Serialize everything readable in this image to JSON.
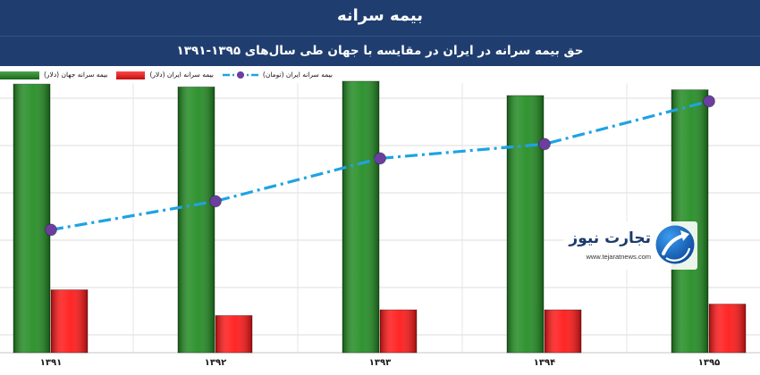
{
  "chart_data": {
    "type": "bar",
    "title": "بیمه سرانه",
    "subtitle": "حق بیمه سرانه در ایران در مقایسه با جهان طی سال‌های ۱۳۹۵-۱۳۹۱",
    "categories": [
      "۱۳۹۱",
      "۱۳۹۲",
      "۱۳۹۳",
      "۱۳۹۴",
      "۱۳۹۵"
    ],
    "series": [
      {
        "name": "بیمه سرانه جهان (دلار)",
        "type": "bar",
        "color": "#1f8a1f",
        "values": [
          94,
          93,
          95,
          90,
          92
        ]
      },
      {
        "name": "بیمه سرانه ایران (دلار)",
        "type": "bar",
        "color": "#ff1414",
        "values": [
          22,
          13,
          15,
          15,
          17
        ]
      },
      {
        "name": "بیمه سرانه ایران (تومان)",
        "type": "line",
        "color": "#1ea3e3",
        "marker_color": "#6a3f9e",
        "values": [
          43,
          53,
          68,
          73,
          88
        ]
      }
    ],
    "ylim": [
      0,
      100
    ],
    "grid": true,
    "legend": "top-left"
  },
  "watermark": {
    "name": "تجارت نیوز",
    "url": "www.tejaratnews.com",
    "icon": "tejaratnews-logo-icon",
    "color": "#1b3a6b"
  },
  "colors": {
    "header_background": "#1f3e6f",
    "header_text": "#ffffff",
    "plot_background": "#ffffff"
  }
}
